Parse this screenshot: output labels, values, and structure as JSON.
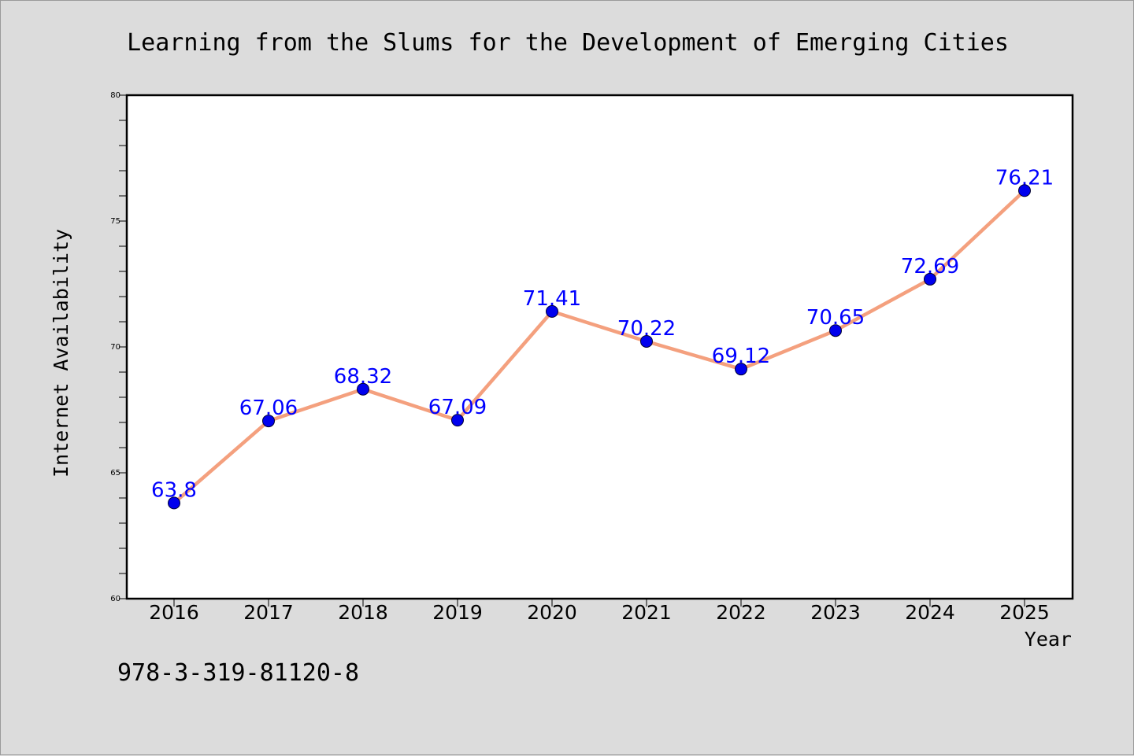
{
  "chart_data": {
    "type": "line",
    "title": "Learning from the Slums for the Development of Emerging Cities",
    "xlabel": "Year",
    "ylabel": "Internet Availability",
    "categories": [
      "2016",
      "2017",
      "2018",
      "2019",
      "2020",
      "2021",
      "2022",
      "2023",
      "2024",
      "2025"
    ],
    "series": [
      {
        "values": [
          63.8,
          67.06,
          68.32,
          67.09,
          71.41,
          70.22,
          69.12,
          70.65,
          72.69,
          76.21
        ],
        "line_color": "#f4a07e",
        "marker_color": "#0000ee",
        "label_color": "#0000ff"
      }
    ],
    "ylim": [
      60,
      80
    ],
    "yticks": [
      "60",
      "65",
      "70",
      "75",
      "80"
    ],
    "grid": false,
    "legend": "none"
  },
  "footer": {
    "code": "978-3-319-81120-8"
  },
  "colors": {
    "background": "#dcdcdc",
    "plot_background": "#ffffff"
  }
}
